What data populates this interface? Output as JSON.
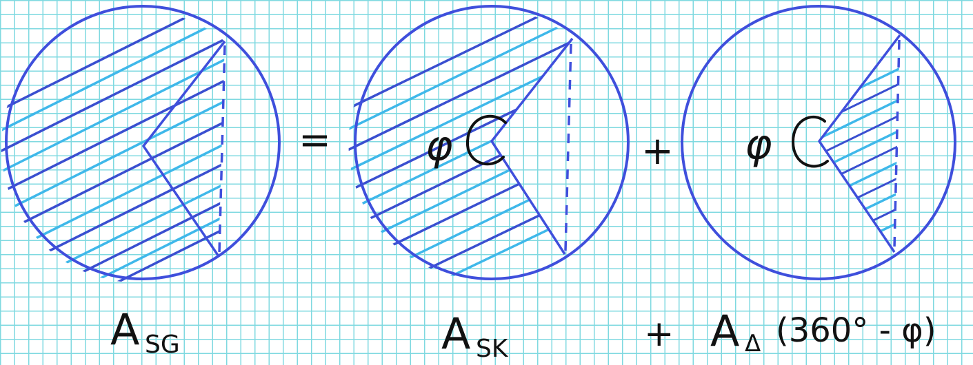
{
  "formula": {
    "left_term": {
      "symbol": "A",
      "subscript": "SG"
    },
    "equals": "=",
    "first_term": {
      "symbol": "A",
      "subscript": "SK"
    },
    "plus": "+",
    "second_term": {
      "symbol": "A",
      "subscript": "Δ",
      "argument": "(360° - φ)"
    }
  },
  "angle_labels": {
    "sector_angle": "φ",
    "triangle_angle": "φ"
  },
  "colors": {
    "circle_stroke": "#3f4fdc",
    "hatch_dark": "#3a4fd0",
    "hatch_light": "#3fb8ea",
    "ink": "#111111",
    "grid": "#7fd9e0"
  }
}
